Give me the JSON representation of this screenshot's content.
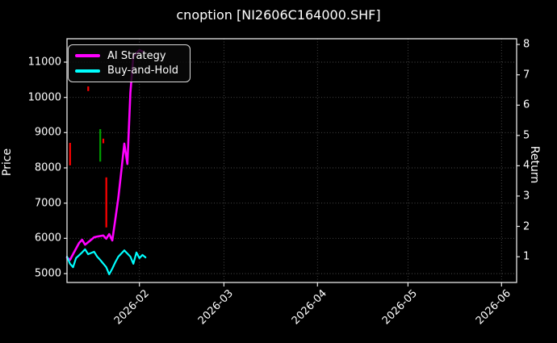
{
  "title": "cnoption [NI2606C164000.SHF]",
  "legend": {
    "items": [
      {
        "label": "AI Strategy",
        "color": "#ff00ff"
      },
      {
        "label": "Buy-and-Hold",
        "color": "#00ffff"
      }
    ]
  },
  "chart_data": {
    "type": "line",
    "title": "cnoption [NI2606C164000.SHF]",
    "xlabel": "",
    "ylabel_left": "Price",
    "ylabel_right": "Return",
    "background": "#000000",
    "grid": true,
    "legend_position": "upper left",
    "x_range": [
      "2026-01-08",
      "2026-06-06"
    ],
    "price_range": [
      4748,
      11664
    ],
    "return_range": [
      0.15,
      8.19
    ],
    "price_ticks": [
      5000,
      6000,
      7000,
      8000,
      9000,
      10000,
      11000
    ],
    "return_ticks": [
      1,
      2,
      3,
      4,
      5,
      6,
      7,
      8
    ],
    "x_ticks": [
      {
        "date": "2026-02-01",
        "label": "2026-02"
      },
      {
        "date": "2026-03-01",
        "label": "2026-03"
      },
      {
        "date": "2026-04-01",
        "label": "2026-04"
      },
      {
        "date": "2026-05-01",
        "label": "2026-05"
      },
      {
        "date": "2026-06-01",
        "label": "2026-06"
      }
    ],
    "series": [
      {
        "name": "AI Strategy",
        "color": "#ff00ff",
        "width": 2.6,
        "axis": "price",
        "points": [
          [
            "2026-01-08",
            5450
          ],
          [
            "2026-01-09",
            5390
          ],
          [
            "2026-01-11",
            5710
          ],
          [
            "2026-01-12",
            5870
          ],
          [
            "2026-01-13",
            5960
          ],
          [
            "2026-01-14",
            5820
          ],
          [
            "2026-01-16",
            5960
          ],
          [
            "2026-01-17",
            6030
          ],
          [
            "2026-01-18",
            6050
          ],
          [
            "2026-01-20",
            6080
          ],
          [
            "2026-01-21",
            5990
          ],
          [
            "2026-01-22",
            6120
          ],
          [
            "2026-01-23",
            5940
          ],
          [
            "2026-01-24",
            6530
          ],
          [
            "2026-01-25",
            7150
          ],
          [
            "2026-01-26",
            7910
          ],
          [
            "2026-01-27",
            8690
          ],
          [
            "2026-01-28",
            8110
          ],
          [
            "2026-01-29",
            10130
          ],
          [
            "2026-01-30",
            11160
          ],
          [
            "2026-02-01",
            11340
          ],
          [
            "2026-02-02",
            11300
          ]
        ]
      },
      {
        "name": "Buy-and-Hold",
        "color": "#00ffff",
        "width": 2.2,
        "axis": "price",
        "points": [
          [
            "2026-01-08",
            5480
          ],
          [
            "2026-01-09",
            5280
          ],
          [
            "2026-01-10",
            5180
          ],
          [
            "2026-01-11",
            5440
          ],
          [
            "2026-01-13",
            5600
          ],
          [
            "2026-01-14",
            5690
          ],
          [
            "2026-01-15",
            5550
          ],
          [
            "2026-01-17",
            5620
          ],
          [
            "2026-01-18",
            5480
          ],
          [
            "2026-01-19",
            5390
          ],
          [
            "2026-01-21",
            5180
          ],
          [
            "2026-01-22",
            4980
          ],
          [
            "2026-01-23",
            5140
          ],
          [
            "2026-01-24",
            5320
          ],
          [
            "2026-01-25",
            5480
          ],
          [
            "2026-01-27",
            5660
          ],
          [
            "2026-01-29",
            5480
          ],
          [
            "2026-01-30",
            5280
          ],
          [
            "2026-01-31",
            5600
          ],
          [
            "2026-02-01",
            5440
          ],
          [
            "2026-02-02",
            5530
          ],
          [
            "2026-02-03",
            5460
          ]
        ]
      }
    ],
    "candles": [
      {
        "date": "2026-01-09",
        "high": 8710,
        "low": 8070,
        "color": "#ff0000"
      },
      {
        "date": "2026-01-15",
        "high": 10310,
        "low": 10180,
        "color": "#ff0000"
      },
      {
        "date": "2026-01-19",
        "high": 9100,
        "low": 8180,
        "color": "#00a000"
      },
      {
        "date": "2026-01-20",
        "high": 8830,
        "low": 8700,
        "color": "#ff0000"
      },
      {
        "date": "2026-01-21",
        "high": 7730,
        "low": 6310,
        "color": "#ff0000"
      }
    ],
    "style": {
      "spine_color": "#e8e8e8",
      "grid_color": "#4d4d4d",
      "tick_color": "#ffffff"
    }
  }
}
